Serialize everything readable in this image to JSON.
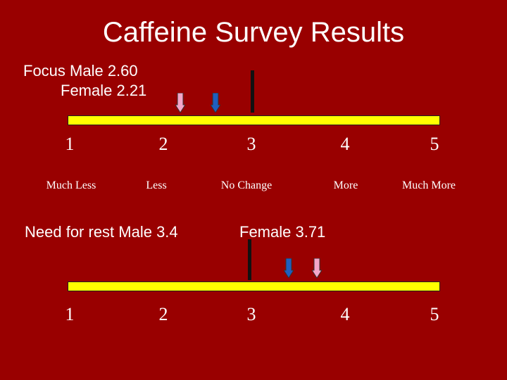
{
  "title": "Caffeine Survey Results",
  "focus": {
    "label_line1": "Focus  Male 2.60",
    "label_line2": "Female 2.21",
    "male": 2.6,
    "female": 2.21
  },
  "rest": {
    "label_male": "Need for rest  Male 3.4",
    "label_female": "Female 3.71",
    "male": 3.4,
    "female": 3.71
  },
  "scale": {
    "numbers": [
      "1",
      "2",
      "3",
      "4",
      "5"
    ],
    "descriptors": [
      "Much Less",
      "Less",
      "No Change",
      "More",
      "Much More"
    ]
  },
  "colors": {
    "background": "#990000",
    "bar": "#ffff00",
    "male_arrow": "#1f5fbf",
    "female_arrow": "#f4a6c8",
    "divider": "#111111"
  }
}
